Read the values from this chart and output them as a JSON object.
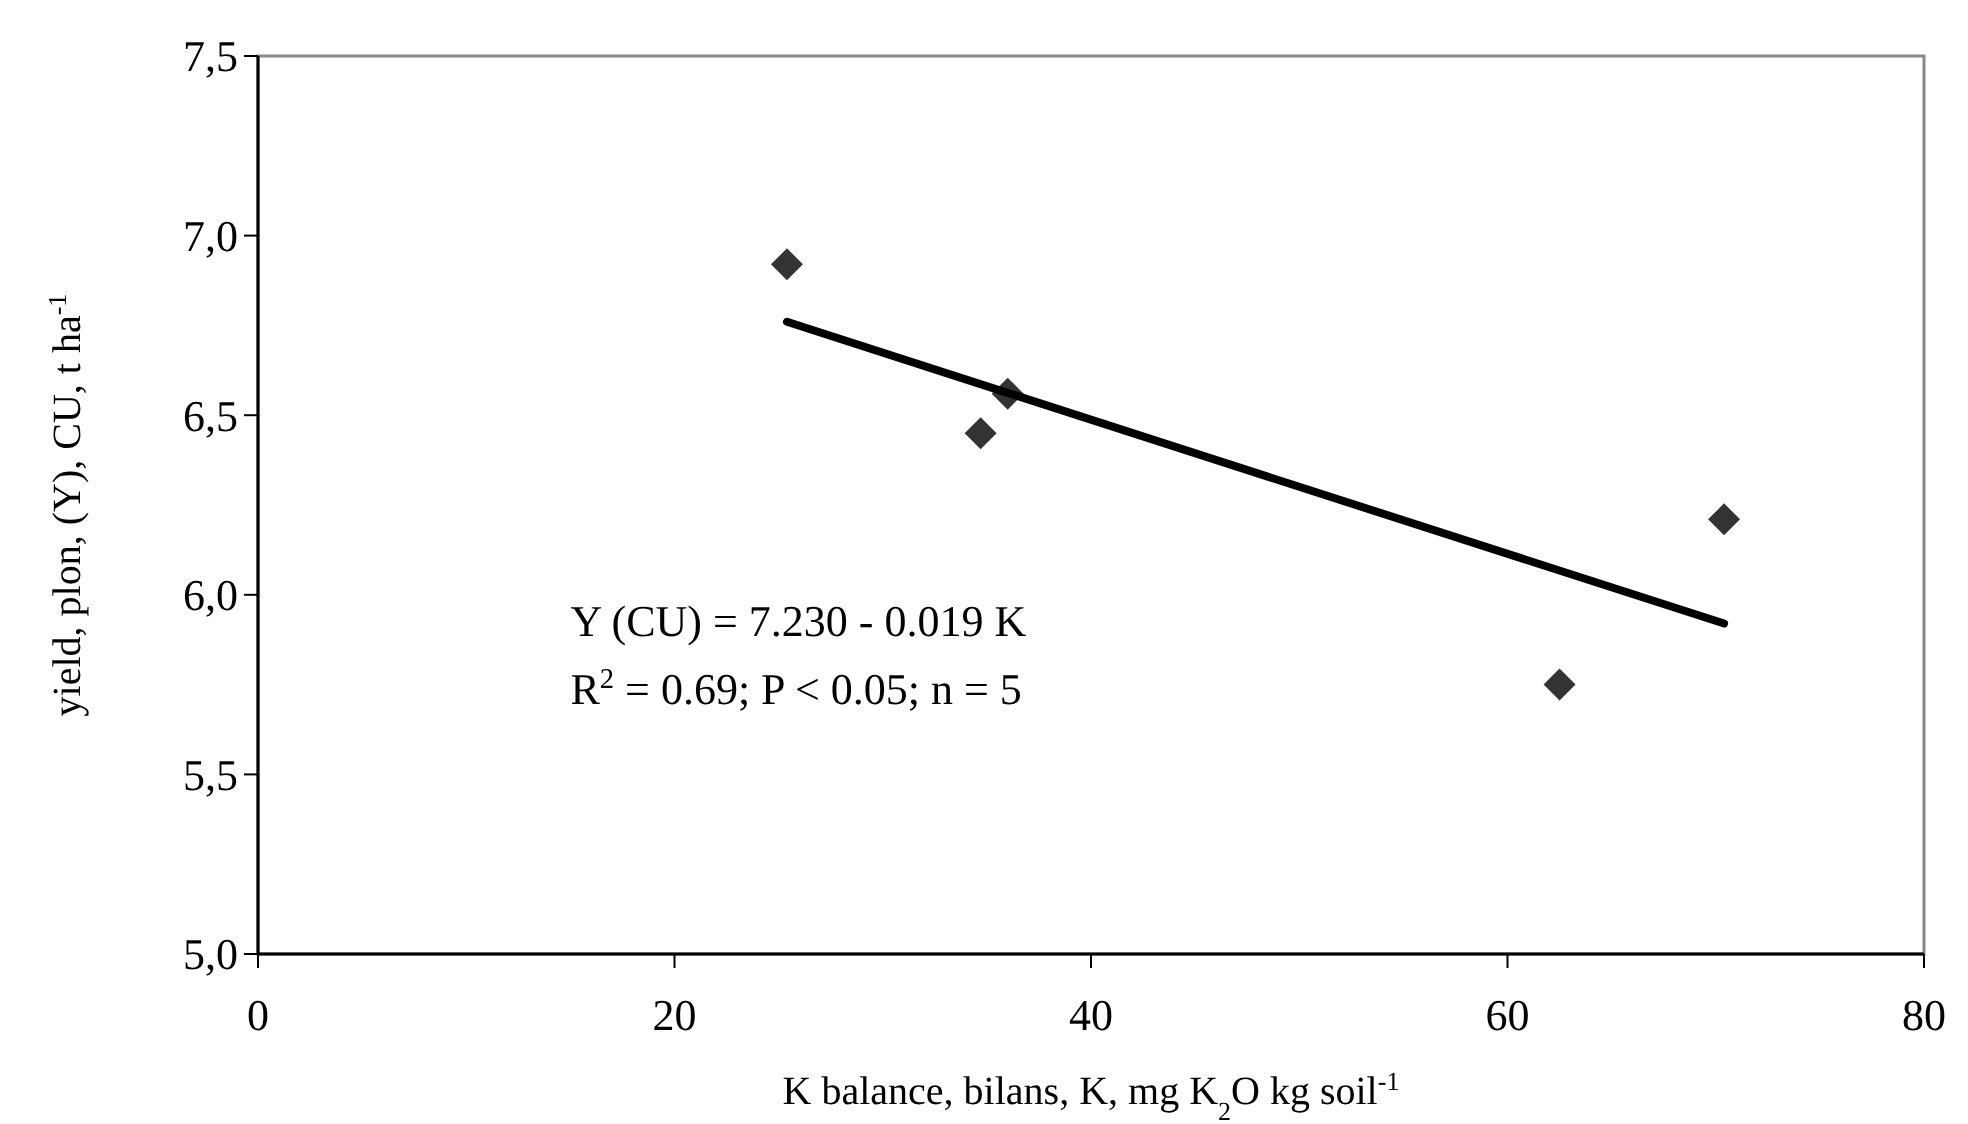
{
  "chart_data": {
    "type": "scatter",
    "xlabel": "K balance, bilans, K, mg K$_{2}$O kg soil$^{-1}$",
    "ylabel": "yield, plon, (Y), CU, t ha$^{-1}$",
    "xlim": [
      0,
      80
    ],
    "xticks": [
      0,
      20,
      40,
      60,
      80
    ],
    "ylim": [
      5,
      7.5
    ],
    "yticks": [
      {
        "value": 5,
        "label": "5,0"
      },
      {
        "value": 5.5,
        "label": "5,5"
      },
      {
        "value": 6,
        "label": "6,0"
      },
      {
        "value": 6.5,
        "label": "6,5"
      },
      {
        "value": 7,
        "label": "7,0"
      },
      {
        "value": 7.5,
        "label": "7,5"
      }
    ],
    "series": [
      {
        "marker": "diamond",
        "color": "#333333",
        "x": [
          25.4,
          34.7,
          36.0,
          62.5,
          70.4
        ],
        "values": [
          6.92,
          6.45,
          6.56,
          5.75,
          6.21
        ]
      },
      {
        "type": "line",
        "color": "#000000",
        "x": [
          25.4,
          70.4
        ],
        "values": [
          6.76,
          5.92
        ]
      }
    ],
    "annotations": [
      "Y (CU) = 7.230 - 0.019 K",
      "R$^{2}$ = 0.69; P < 0.05; n = 5"
    ]
  }
}
